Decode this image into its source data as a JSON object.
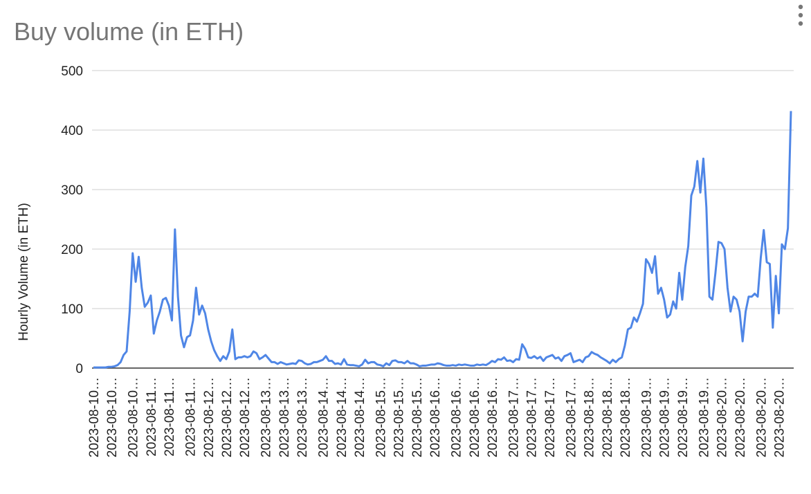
{
  "chart_data": {
    "type": "line",
    "title": "Buy volume (in ETH)",
    "y_label": "Hourly Volume (in ETH)",
    "color": "#4f86e6",
    "grid": true,
    "ylim": [
      0,
      500
    ],
    "yticks": [
      0,
      100,
      200,
      300,
      400,
      500
    ],
    "categories": [
      "2023-08-10…",
      null,
      null,
      null,
      null,
      null,
      "2023-08-10…",
      null,
      null,
      null,
      null,
      null,
      null,
      "2023-08-10…",
      null,
      null,
      null,
      null,
      null,
      "2023-08-11…",
      null,
      null,
      null,
      null,
      null,
      "2023-08-11…",
      null,
      null,
      null,
      null,
      null,
      null,
      "2023-08-11…",
      null,
      null,
      null,
      null,
      null,
      "2023-08-12…",
      null,
      null,
      null,
      null,
      null,
      "2023-08-12…",
      null,
      null,
      null,
      null,
      null,
      "2023-08-12…",
      null,
      null,
      null,
      null,
      null,
      null,
      "2023-08-13…",
      null,
      null,
      null,
      null,
      null,
      "2023-08-13…",
      null,
      null,
      null,
      null,
      null,
      "2023-08-13…",
      null,
      null,
      null,
      null,
      null,
      null,
      "2023-08-14…",
      null,
      null,
      null,
      null,
      null,
      "2023-08-14…",
      null,
      null,
      null,
      null,
      null,
      "2023-08-14…",
      null,
      null,
      null,
      null,
      null,
      null,
      "2023-08-15…",
      null,
      null,
      null,
      null,
      null,
      "2023-08-15…",
      null,
      null,
      null,
      null,
      null,
      "2023-08-15…",
      null,
      null,
      null,
      null,
      null,
      "2023-08-16…",
      null,
      null,
      null,
      null,
      null,
      null,
      "2023-08-16…",
      null,
      null,
      null,
      null,
      null,
      "2023-08-16…",
      null,
      null,
      null,
      null,
      null,
      "2023-08-16…",
      null,
      null,
      null,
      null,
      null,
      null,
      "2023-08-17…",
      null,
      null,
      null,
      null,
      null,
      "2023-08-17…",
      null,
      null,
      null,
      null,
      null,
      "2023-08-17…",
      null,
      null,
      null,
      null,
      null,
      null,
      "2023-08-17…",
      null,
      null,
      null,
      null,
      null,
      "2023-08-18…",
      null,
      null,
      null,
      null,
      null,
      "2023-08-18…",
      null,
      null,
      null,
      null,
      null,
      "2023-08-18…",
      null,
      null,
      null,
      null,
      null,
      null,
      "2023-08-19…",
      null,
      null,
      null,
      null,
      null,
      "2023-08-19…",
      null,
      null,
      null,
      null,
      null,
      "2023-08-19…",
      null,
      null,
      null,
      null,
      null,
      null,
      "2023-08-19…",
      null,
      null,
      null,
      null,
      null,
      "2023-08-20…",
      null,
      null,
      null,
      null,
      null,
      "2023-08-20…",
      null,
      null,
      null,
      null,
      null,
      null,
      "2023-08-20…",
      null,
      null,
      null,
      null,
      null,
      "2023-08-20…",
      null,
      null,
      null,
      null
    ],
    "values": [
      1,
      1,
      1,
      1,
      1,
      2,
      2,
      3,
      5,
      10,
      22,
      28,
      95,
      193,
      145,
      187,
      135,
      103,
      110,
      122,
      58,
      80,
      95,
      115,
      118,
      105,
      80,
      233,
      120,
      55,
      35,
      52,
      55,
      80,
      135,
      90,
      105,
      92,
      65,
      45,
      30,
      20,
      12,
      20,
      15,
      28,
      65,
      15,
      18,
      18,
      20,
      18,
      20,
      28,
      25,
      15,
      18,
      22,
      16,
      10,
      10,
      7,
      10,
      8,
      6,
      7,
      8,
      7,
      13,
      12,
      8,
      6,
      7,
      10,
      10,
      12,
      14,
      20,
      12,
      12,
      7,
      8,
      6,
      15,
      6,
      5,
      5,
      4,
      3,
      6,
      14,
      8,
      10,
      10,
      6,
      5,
      3,
      8,
      5,
      12,
      13,
      10,
      10,
      8,
      12,
      8,
      8,
      6,
      3,
      4,
      4,
      5,
      6,
      6,
      8,
      7,
      5,
      4,
      4,
      5,
      4,
      6,
      5,
      6,
      5,
      4,
      4,
      6,
      5,
      6,
      5,
      8,
      12,
      10,
      15,
      14,
      18,
      12,
      13,
      10,
      15,
      14,
      40,
      32,
      18,
      17,
      20,
      16,
      19,
      12,
      18,
      20,
      22,
      16,
      18,
      12,
      20,
      22,
      25,
      10,
      12,
      14,
      10,
      18,
      20,
      27,
      24,
      22,
      18,
      15,
      12,
      8,
      14,
      10,
      15,
      18,
      38,
      65,
      68,
      85,
      78,
      92,
      108,
      183,
      175,
      160,
      188,
      125,
      135,
      115,
      85,
      90,
      112,
      100,
      160,
      115,
      170,
      205,
      290,
      305,
      348,
      295,
      352,
      270,
      120,
      115,
      160,
      212,
      210,
      200,
      135,
      95,
      120,
      115,
      95,
      45,
      95,
      120,
      120,
      125,
      120,
      185,
      232,
      178,
      175,
      68,
      155,
      92,
      208,
      200,
      235,
      432
    ]
  }
}
